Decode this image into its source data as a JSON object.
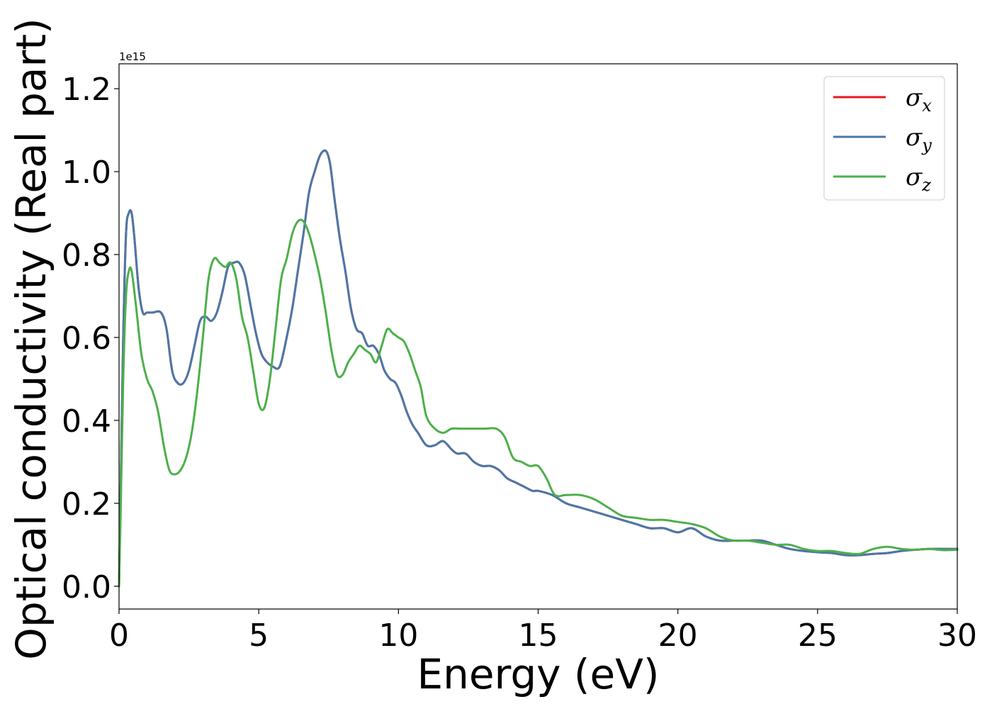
{
  "chart_data": {
    "type": "line",
    "xlabel": "Energy (eV)",
    "ylabel": "Optical conductivity (Real part)",
    "y_offset_text": "1e15",
    "xlim": [
      0,
      30
    ],
    "ylim": [
      -0.055,
      1.26
    ],
    "x_ticks": [
      0,
      5,
      10,
      15,
      20,
      25,
      30
    ],
    "x_tick_labels": [
      "0",
      "5",
      "10",
      "15",
      "20",
      "25",
      "30"
    ],
    "y_ticks": [
      0.0,
      0.2,
      0.4,
      0.6,
      0.8,
      1.0,
      1.2
    ],
    "y_tick_labels": [
      "0.0",
      "0.2",
      "0.4",
      "0.6",
      "0.8",
      "1.0",
      "1.2"
    ],
    "grid": false,
    "legend_position": "top-right",
    "series": [
      {
        "name": "σ",
        "subscript": "x",
        "color": "#e41a1c",
        "x": [
          0,
          0.05,
          0.15,
          0.25,
          0.35,
          0.45,
          0.55,
          0.7,
          0.85,
          1.0,
          1.2,
          1.5,
          1.7,
          1.9,
          2.1,
          2.3,
          2.5,
          2.7,
          2.9,
          3.1,
          3.3,
          3.5,
          3.7,
          3.9,
          4.1,
          4.3,
          4.5,
          4.7,
          4.9,
          5.1,
          5.3,
          5.5,
          5.75,
          6.0,
          6.2,
          6.4,
          6.6,
          6.8,
          7.0,
          7.2,
          7.4,
          7.55,
          7.7,
          7.9,
          8.1,
          8.3,
          8.5,
          8.7,
          8.9,
          9.1,
          9.3,
          9.5,
          9.7,
          9.9,
          10.1,
          10.3,
          10.5,
          10.7,
          11.0,
          11.3,
          11.6,
          11.9,
          12.1,
          12.4,
          12.7,
          13.0,
          13.3,
          13.6,
          13.9,
          14.2,
          14.5,
          14.8,
          15.0,
          15.5,
          16.0,
          16.5,
          17.0,
          17.5,
          18.0,
          18.5,
          19.0,
          19.5,
          20.0,
          20.5,
          21.0,
          21.5,
          22.0,
          22.5,
          23.0,
          23.5,
          24.0,
          24.5,
          25.0,
          25.5,
          26.0,
          26.5,
          27.0,
          27.5,
          28.0,
          28.5,
          29.0,
          29.5,
          30.0
        ],
        "values": [
          0.0,
          0.2,
          0.6,
          0.85,
          0.9,
          0.9,
          0.84,
          0.72,
          0.66,
          0.66,
          0.66,
          0.66,
          0.62,
          0.52,
          0.49,
          0.49,
          0.52,
          0.58,
          0.64,
          0.65,
          0.64,
          0.66,
          0.71,
          0.77,
          0.78,
          0.78,
          0.75,
          0.68,
          0.61,
          0.56,
          0.54,
          0.53,
          0.53,
          0.6,
          0.67,
          0.76,
          0.85,
          0.95,
          1.0,
          1.04,
          1.05,
          1.02,
          0.94,
          0.84,
          0.76,
          0.67,
          0.62,
          0.61,
          0.58,
          0.58,
          0.56,
          0.52,
          0.5,
          0.49,
          0.46,
          0.42,
          0.39,
          0.37,
          0.34,
          0.34,
          0.35,
          0.33,
          0.32,
          0.32,
          0.3,
          0.29,
          0.29,
          0.28,
          0.26,
          0.25,
          0.24,
          0.23,
          0.23,
          0.22,
          0.2,
          0.19,
          0.18,
          0.17,
          0.16,
          0.15,
          0.14,
          0.14,
          0.13,
          0.14,
          0.12,
          0.11,
          0.11,
          0.11,
          0.11,
          0.1,
          0.09,
          0.085,
          0.082,
          0.08,
          0.075,
          0.075,
          0.078,
          0.08,
          0.085,
          0.088,
          0.09,
          0.09,
          0.09
        ]
      },
      {
        "name": "σ",
        "subscript": "y",
        "color": "#4a78a8",
        "x": [
          0,
          0.05,
          0.15,
          0.25,
          0.35,
          0.45,
          0.55,
          0.7,
          0.85,
          1.0,
          1.2,
          1.5,
          1.7,
          1.9,
          2.1,
          2.3,
          2.5,
          2.7,
          2.9,
          3.1,
          3.3,
          3.5,
          3.7,
          3.9,
          4.1,
          4.3,
          4.5,
          4.7,
          4.9,
          5.1,
          5.3,
          5.5,
          5.75,
          6.0,
          6.2,
          6.4,
          6.6,
          6.8,
          7.0,
          7.2,
          7.4,
          7.55,
          7.7,
          7.9,
          8.1,
          8.3,
          8.5,
          8.7,
          8.9,
          9.1,
          9.3,
          9.5,
          9.7,
          9.9,
          10.1,
          10.3,
          10.5,
          10.7,
          11.0,
          11.3,
          11.6,
          11.9,
          12.1,
          12.4,
          12.7,
          13.0,
          13.3,
          13.6,
          13.9,
          14.2,
          14.5,
          14.8,
          15.0,
          15.5,
          16.0,
          16.5,
          17.0,
          17.5,
          18.0,
          18.5,
          19.0,
          19.5,
          20.0,
          20.5,
          21.0,
          21.5,
          22.0,
          22.5,
          23.0,
          23.5,
          24.0,
          24.5,
          25.0,
          25.5,
          26.0,
          26.5,
          27.0,
          27.5,
          28.0,
          28.5,
          29.0,
          29.5,
          30.0
        ],
        "values": [
          0.0,
          0.2,
          0.6,
          0.85,
          0.9,
          0.9,
          0.84,
          0.72,
          0.66,
          0.66,
          0.66,
          0.66,
          0.62,
          0.52,
          0.49,
          0.49,
          0.52,
          0.58,
          0.64,
          0.65,
          0.64,
          0.66,
          0.71,
          0.77,
          0.78,
          0.78,
          0.75,
          0.68,
          0.61,
          0.56,
          0.54,
          0.53,
          0.53,
          0.6,
          0.67,
          0.76,
          0.85,
          0.95,
          1.0,
          1.04,
          1.05,
          1.02,
          0.94,
          0.84,
          0.76,
          0.67,
          0.62,
          0.61,
          0.58,
          0.58,
          0.56,
          0.52,
          0.5,
          0.49,
          0.46,
          0.42,
          0.39,
          0.37,
          0.34,
          0.34,
          0.35,
          0.33,
          0.32,
          0.32,
          0.3,
          0.29,
          0.29,
          0.28,
          0.26,
          0.25,
          0.24,
          0.23,
          0.23,
          0.22,
          0.2,
          0.19,
          0.18,
          0.17,
          0.16,
          0.15,
          0.14,
          0.14,
          0.13,
          0.14,
          0.12,
          0.11,
          0.11,
          0.11,
          0.11,
          0.1,
          0.09,
          0.085,
          0.082,
          0.08,
          0.075,
          0.075,
          0.078,
          0.08,
          0.085,
          0.088,
          0.09,
          0.09,
          0.09
        ]
      },
      {
        "name": "σ",
        "subscript": "z",
        "color": "#4daf4a",
        "x": [
          0,
          0.05,
          0.15,
          0.25,
          0.35,
          0.45,
          0.6,
          0.8,
          1.0,
          1.2,
          1.4,
          1.6,
          1.8,
          2.0,
          2.2,
          2.4,
          2.6,
          2.8,
          3.0,
          3.2,
          3.4,
          3.6,
          3.8,
          4.0,
          4.2,
          4.4,
          4.6,
          4.8,
          5.0,
          5.2,
          5.4,
          5.6,
          5.8,
          6.0,
          6.2,
          6.4,
          6.6,
          6.8,
          7.0,
          7.2,
          7.4,
          7.6,
          7.8,
          8.0,
          8.2,
          8.4,
          8.6,
          8.8,
          9.0,
          9.2,
          9.4,
          9.6,
          9.8,
          10.0,
          10.2,
          10.4,
          10.6,
          10.8,
          11.0,
          11.3,
          11.6,
          11.9,
          12.2,
          12.5,
          12.8,
          13.1,
          13.5,
          13.8,
          14.1,
          14.4,
          14.7,
          15.0,
          15.3,
          15.6,
          16.0,
          16.5,
          17.0,
          17.5,
          18.0,
          18.5,
          19.0,
          19.5,
          20.0,
          20.5,
          21.0,
          21.5,
          22.0,
          22.5,
          23.0,
          23.5,
          24.0,
          24.5,
          25.0,
          25.5,
          26.0,
          26.5,
          27.0,
          27.5,
          28.0,
          28.5,
          29.0,
          29.5,
          30.0
        ],
        "values": [
          0.0,
          0.15,
          0.5,
          0.7,
          0.76,
          0.76,
          0.68,
          0.56,
          0.5,
          0.47,
          0.42,
          0.34,
          0.28,
          0.27,
          0.28,
          0.31,
          0.37,
          0.47,
          0.6,
          0.74,
          0.79,
          0.78,
          0.77,
          0.78,
          0.74,
          0.65,
          0.6,
          0.52,
          0.44,
          0.43,
          0.5,
          0.62,
          0.74,
          0.79,
          0.85,
          0.88,
          0.88,
          0.85,
          0.8,
          0.74,
          0.66,
          0.57,
          0.51,
          0.51,
          0.54,
          0.56,
          0.58,
          0.57,
          0.56,
          0.54,
          0.58,
          0.62,
          0.61,
          0.6,
          0.59,
          0.56,
          0.52,
          0.48,
          0.41,
          0.38,
          0.37,
          0.38,
          0.38,
          0.38,
          0.38,
          0.38,
          0.38,
          0.36,
          0.31,
          0.3,
          0.29,
          0.29,
          0.26,
          0.22,
          0.22,
          0.22,
          0.21,
          0.19,
          0.17,
          0.165,
          0.16,
          0.16,
          0.155,
          0.15,
          0.14,
          0.12,
          0.11,
          0.11,
          0.105,
          0.1,
          0.1,
          0.09,
          0.085,
          0.085,
          0.08,
          0.078,
          0.09,
          0.095,
          0.09,
          0.088,
          0.09,
          0.087,
          0.088
        ]
      }
    ]
  }
}
